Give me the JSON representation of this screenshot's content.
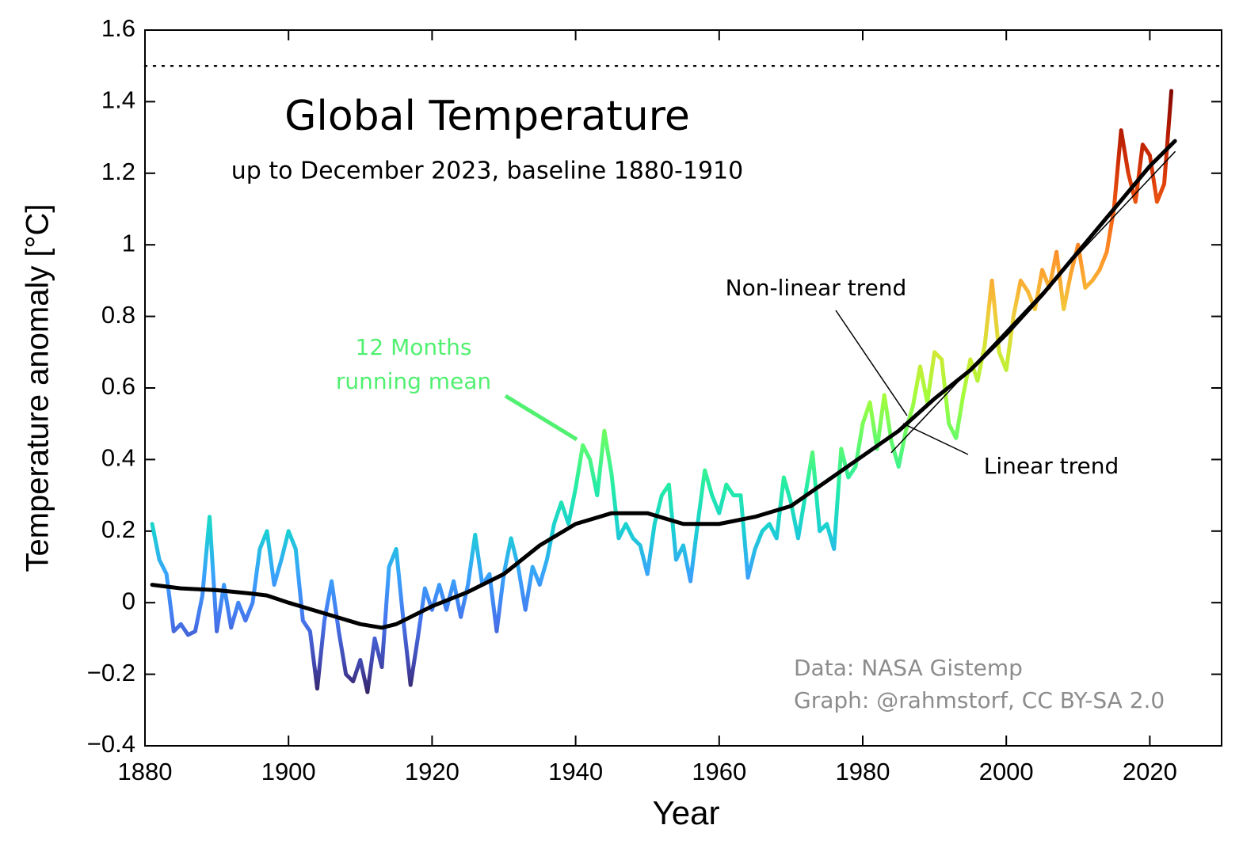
{
  "chart_data": {
    "type": "line",
    "title": "Global Temperature",
    "subtitle": "up to December 2023, baseline 1880-1910",
    "x_label": "Year",
    "y_label": "Temperature anomaly [°C]",
    "xlim": [
      1880,
      2030
    ],
    "ylim": [
      -0.4,
      1.6
    ],
    "xticks": [
      1880,
      1900,
      1920,
      1940,
      1960,
      1980,
      2000,
      2020
    ],
    "yticks": [
      {
        "value": -0.4,
        "label": "−0.4"
      },
      {
        "value": -0.2,
        "label": "−0.2"
      },
      0,
      0.2,
      0.4,
      0.6,
      0.8,
      1,
      1.2,
      1.4,
      1.6
    ],
    "reference_line": 1.5,
    "colormap": [
      "#30123b",
      "#4145ab",
      "#4675ed",
      "#39a2fc",
      "#1bcfd4",
      "#24eca6",
      "#61fc6c",
      "#a4fc3b",
      "#d1e834",
      "#f3c63a",
      "#fe9b2d",
      "#f36315",
      "#d93807",
      "#b11901",
      "#7a0403"
    ],
    "colormap_range": [
      -0.3,
      1.45
    ],
    "series": [
      {
        "x": [
          1881,
          1882,
          1883,
          1884,
          1885,
          1886,
          1887,
          1888,
          1889,
          1890,
          1891,
          1892,
          1893,
          1894,
          1895,
          1896,
          1897,
          1898,
          1899,
          1900,
          1901,
          1902,
          1903,
          1904,
          1905,
          1906,
          1907,
          1908,
          1909,
          1910,
          1911,
          1912,
          1913,
          1914,
          1915,
          1916,
          1917,
          1918,
          1919,
          1920,
          1921,
          1922,
          1923,
          1924,
          1925,
          1926,
          1927,
          1928,
          1929,
          1930,
          1931,
          1932,
          1933,
          1934,
          1935,
          1936,
          1937,
          1938,
          1939,
          1940,
          1941,
          1942,
          1943,
          1944,
          1945,
          1946,
          1947,
          1948,
          1949,
          1950,
          1951,
          1952,
          1953,
          1954,
          1955,
          1956,
          1957,
          1958,
          1959,
          1960,
          1961,
          1962,
          1963,
          1964,
          1965,
          1966,
          1967,
          1968,
          1969,
          1970,
          1971,
          1972,
          1973,
          1974,
          1975,
          1976,
          1977,
          1978,
          1979,
          1980,
          1981,
          1982,
          1983,
          1984,
          1985,
          1986,
          1987,
          1988,
          1989,
          1990,
          1991,
          1992,
          1993,
          1994,
          1995,
          1996,
          1997,
          1998,
          1999,
          2000,
          2001,
          2002,
          2003,
          2004,
          2005,
          2006,
          2007,
          2008,
          2009,
          2010,
          2011,
          2012,
          2013,
          2014,
          2015,
          2016,
          2017,
          2018,
          2019,
          2020,
          2021,
          2022,
          2023
        ],
        "values": [
          0.22,
          0.12,
          0.08,
          -0.08,
          -0.06,
          -0.09,
          -0.08,
          0.02,
          0.24,
          -0.08,
          0.05,
          -0.07,
          0.0,
          -0.05,
          0.0,
          0.15,
          0.2,
          0.05,
          0.12,
          0.2,
          0.15,
          -0.05,
          -0.08,
          -0.24,
          -0.05,
          0.06,
          -0.08,
          -0.2,
          -0.22,
          -0.16,
          -0.25,
          -0.1,
          -0.18,
          0.1,
          0.15,
          -0.05,
          -0.23,
          -0.1,
          0.04,
          -0.02,
          0.05,
          -0.02,
          0.06,
          -0.04,
          0.05,
          0.19,
          0.05,
          0.08,
          -0.08,
          0.08,
          0.18,
          0.1,
          -0.02,
          0.1,
          0.05,
          0.12,
          0.22,
          0.28,
          0.22,
          0.32,
          0.44,
          0.4,
          0.3,
          0.48,
          0.36,
          0.18,
          0.22,
          0.18,
          0.16,
          0.08,
          0.22,
          0.3,
          0.33,
          0.12,
          0.16,
          0.06,
          0.22,
          0.37,
          0.3,
          0.25,
          0.33,
          0.3,
          0.3,
          0.07,
          0.15,
          0.2,
          0.22,
          0.18,
          0.35,
          0.28,
          0.18,
          0.3,
          0.42,
          0.2,
          0.22,
          0.15,
          0.43,
          0.35,
          0.38,
          0.5,
          0.56,
          0.43,
          0.58,
          0.45,
          0.38,
          0.48,
          0.55,
          0.66,
          0.56,
          0.7,
          0.68,
          0.5,
          0.46,
          0.58,
          0.68,
          0.62,
          0.72,
          0.9,
          0.7,
          0.65,
          0.8,
          0.9,
          0.87,
          0.82,
          0.93,
          0.88,
          0.98,
          0.82,
          0.92,
          1.0,
          0.88,
          0.9,
          0.93,
          0.98,
          1.1,
          1.32,
          1.2,
          1.12,
          1.28,
          1.25,
          1.12,
          1.17,
          1.43
        ]
      },
      {
        "color": "#000000",
        "x": [
          1881,
          1885,
          1890,
          1895,
          1897,
          1900,
          1905,
          1910,
          1913,
          1915,
          1920,
          1925,
          1930,
          1935,
          1940,
          1945,
          1950,
          1955,
          1960,
          1965,
          1970,
          1975,
          1980,
          1985,
          1990,
          1995,
          2000,
          2005,
          2010,
          2015,
          2020,
          2023.5
        ],
        "values": [
          0.05,
          0.04,
          0.035,
          0.025,
          0.02,
          0.0,
          -0.03,
          -0.06,
          -0.07,
          -0.06,
          -0.01,
          0.03,
          0.08,
          0.16,
          0.22,
          0.25,
          0.25,
          0.22,
          0.22,
          0.24,
          0.27,
          0.34,
          0.41,
          0.48,
          0.57,
          0.65,
          0.75,
          0.86,
          0.98,
          1.1,
          1.22,
          1.29
        ]
      },
      {
        "color": "#000000",
        "x": [
          1984,
          2023.5
        ],
        "values": [
          0.42,
          1.26
        ]
      }
    ],
    "annotations": [
      {
        "lines": [
          "12 Months",
          "running mean"
        ],
        "color": "#50f070"
      },
      {
        "lines": [
          "Non-linear trend"
        ],
        "color": "#000000"
      },
      {
        "lines": [
          "Linear trend"
        ],
        "color": "#000000"
      }
    ],
    "source": [
      "Data: NASA Gistemp",
      "Graph: @rahmstorf, CC BY-SA 2.0"
    ]
  }
}
